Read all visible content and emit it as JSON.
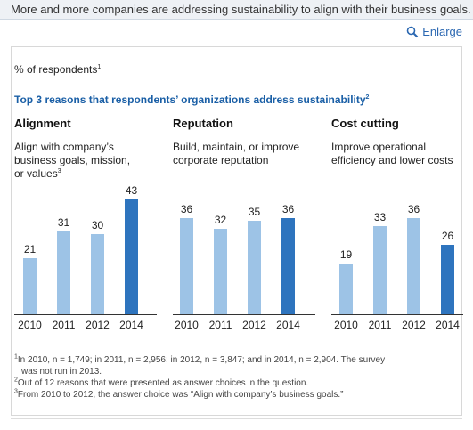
{
  "caption": "More and more companies are addressing sustainability to align with their business goals.",
  "enlarge_label": "Enlarge",
  "respondents_label": "% of respondents",
  "respondents_sup": "1",
  "chart_data": {
    "type": "bar",
    "title": "Top 3 reasons that respondents’ organizations address sustainability",
    "title_sup": "2",
    "ylabel": "% of respondents",
    "ylim": [
      0,
      50
    ],
    "grid": false,
    "colors": {
      "past": "#9dc3e6",
      "latest": "#2e74be"
    },
    "panels": [
      {
        "name": "Alignment",
        "subtitle_lines": [
          "Align with company’s",
          "business goals, mission,",
          "or values"
        ],
        "subtitle_sup": "3",
        "categories": [
          "2010",
          "2011",
          "2012",
          "2014"
        ],
        "values": [
          21,
          31,
          30,
          43
        ]
      },
      {
        "name": "Reputation",
        "subtitle_lines": [
          "Build, maintain, or improve",
          "corporate reputation"
        ],
        "subtitle_sup": "",
        "categories": [
          "2010",
          "2011",
          "2012",
          "2014"
        ],
        "values": [
          36,
          32,
          35,
          36
        ]
      },
      {
        "name": "Cost cutting",
        "subtitle_lines": [
          "Improve operational",
          "efficiency and lower costs"
        ],
        "subtitle_sup": "",
        "categories": [
          "2010",
          "2011",
          "2012",
          "2014"
        ],
        "values": [
          19,
          33,
          36,
          26
        ]
      }
    ]
  },
  "footnotes": [
    {
      "sup": "1",
      "text": "In 2010, n = 1,749; in 2011, n = 2,956; in 2012, n = 3,847; and in 2014, n = 2,904. The survey"
    },
    {
      "sup": "",
      "text": "was not run in 2013.",
      "indent": true
    },
    {
      "sup": "2",
      "text": "Out of 12 reasons that were presented as answer choices in the question."
    },
    {
      "sup": "3",
      "text": "From 2010 to 2012, the answer choice was “Align with company’s business goals.”"
    }
  ]
}
